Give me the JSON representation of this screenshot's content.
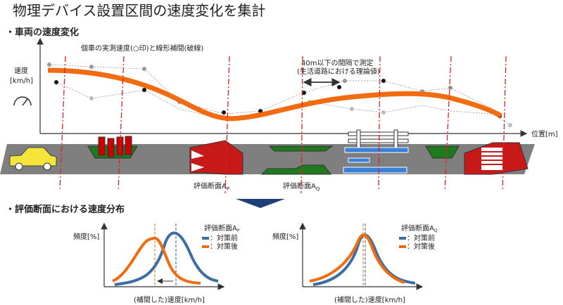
{
  "title": "物理デバイス設置区間の速度変化を集計",
  "section_speed_change": {
    "heading": "・車両の速度変化",
    "annotation": "個車の実測速度(○印)と線形補間(破線)",
    "y_label_1": "速度",
    "y_label_2": "[km/h]",
    "x_label": "位置[m]",
    "callout_1": "40m以下の間隔で測定",
    "callout_2": "(生活道路における理論値)",
    "section_p": {
      "text": "評価断面A",
      "sub": "P"
    },
    "section_q": {
      "text": "評価断面A",
      "sub": "Q"
    }
  },
  "section_distribution": {
    "heading": "・評価断面における速度分布",
    "left": {
      "y_label": "頻度[%]",
      "legend_title": {
        "text": "評価断面A",
        "sub": "P"
      },
      "legend_before": "：対策前",
      "legend_after": "：対策後",
      "x_label": "(補間した)速度[km/h]"
    },
    "right": {
      "y_label": "頻度[%]",
      "legend_title": {
        "text": "評価断面A",
        "sub": "Q"
      },
      "legend_before": "：対策前",
      "legend_after": "：対策後",
      "x_label": "(補間した)速度[km/h]"
    }
  }
}
